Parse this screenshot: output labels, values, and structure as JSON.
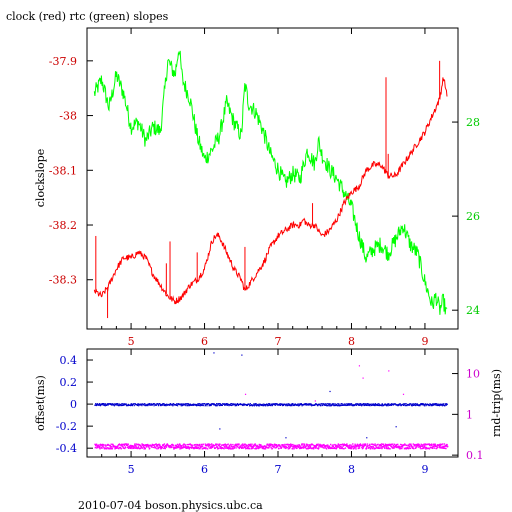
{
  "title": "clock (red) rtc (green) slopes",
  "footer": "2010-07-04 boson.physics.ubc.ca",
  "colors": {
    "clock": "#ff0000",
    "rtc": "#00ff00",
    "offset": "#0000cc",
    "rndtrip": "#ff00ff",
    "axis_left_top": "#cc0000",
    "axis_right_top": "#00cc00",
    "axis_left_bottom": "#0000cc",
    "axis_right_bottom": "#cc00cc"
  },
  "chart_data": [
    {
      "type": "line",
      "ylabel": "clockslope",
      "xlim": [
        4.4,
        9.45
      ],
      "x_ticks": [
        5,
        6,
        7,
        8,
        9
      ],
      "x_tick_labels": [
        "5",
        "6",
        "7",
        "8",
        "9"
      ],
      "ylim": [
        -38.39,
        -37.84
      ],
      "y_ticks": [
        -37.9,
        -38,
        -38.1,
        -38.2,
        -38.3
      ],
      "y_tick_labels": [
        "-37.9",
        "-38",
        "-38.1",
        "-38.2",
        "-38.3"
      ],
      "y2lim": [
        23.6,
        30.0
      ],
      "y2_ticks": [
        24,
        26,
        28
      ],
      "y2_tick_labels": [
        "24",
        "26",
        "28"
      ],
      "series": [
        {
          "axis": "left",
          "points": [
            [
              4.5,
              -38.32
            ],
            [
              4.6,
              -38.33
            ],
            [
              4.7,
              -38.31
            ],
            [
              4.8,
              -38.28
            ],
            [
              4.9,
              -38.26
            ],
            [
              5.0,
              -38.26
            ],
            [
              5.1,
              -38.25
            ],
            [
              5.2,
              -38.26
            ],
            [
              5.3,
              -38.29
            ],
            [
              5.4,
              -38.31
            ],
            [
              5.5,
              -38.33
            ],
            [
              5.6,
              -38.34
            ],
            [
              5.7,
              -38.33
            ],
            [
              5.8,
              -38.31
            ],
            [
              5.9,
              -38.3
            ],
            [
              6.0,
              -38.28
            ],
            [
              6.1,
              -38.23
            ],
            [
              6.15,
              -38.22
            ],
            [
              6.2,
              -38.22
            ],
            [
              6.3,
              -38.25
            ],
            [
              6.4,
              -38.28
            ],
            [
              6.5,
              -38.3
            ],
            [
              6.55,
              -38.32
            ],
            [
              6.6,
              -38.31
            ],
            [
              6.7,
              -38.29
            ],
            [
              6.8,
              -38.27
            ],
            [
              6.9,
              -38.24
            ],
            [
              7.0,
              -38.22
            ],
            [
              7.1,
              -38.21
            ],
            [
              7.2,
              -38.2
            ],
            [
              7.3,
              -38.2
            ],
            [
              7.35,
              -38.19
            ],
            [
              7.4,
              -38.2
            ],
            [
              7.5,
              -38.2
            ],
            [
              7.6,
              -38.22
            ],
            [
              7.7,
              -38.21
            ],
            [
              7.8,
              -38.19
            ],
            [
              7.9,
              -38.16
            ],
            [
              8.0,
              -38.14
            ],
            [
              8.1,
              -38.13
            ],
            [
              8.2,
              -38.1
            ],
            [
              8.3,
              -38.09
            ],
            [
              8.4,
              -38.09
            ],
            [
              8.5,
              -38.11
            ],
            [
              8.6,
              -38.11
            ],
            [
              8.7,
              -38.09
            ],
            [
              8.8,
              -38.07
            ],
            [
              8.9,
              -38.05
            ],
            [
              9.0,
              -38.03
            ],
            [
              9.1,
              -38.0
            ],
            [
              9.2,
              -37.97
            ],
            [
              9.25,
              -37.93
            ],
            [
              9.3,
              -37.96
            ]
          ],
          "spikes": [
            [
              4.52,
              -38.22
            ],
            [
              4.68,
              -38.37
            ],
            [
              5.48,
              -38.27
            ],
            [
              5.53,
              -38.23
            ],
            [
              5.9,
              -38.25
            ],
            [
              6.55,
              -38.24
            ],
            [
              7.47,
              -38.16
            ],
            [
              8.47,
              -37.93
            ],
            [
              8.5,
              -38.07
            ],
            [
              9.2,
              -37.9
            ]
          ]
        },
        {
          "axis": "right",
          "points": [
            [
              4.5,
              28.6
            ],
            [
              4.6,
              28.9
            ],
            [
              4.7,
              28.3
            ],
            [
              4.8,
              29.0
            ],
            [
              4.9,
              28.6
            ],
            [
              5.0,
              27.9
            ],
            [
              5.1,
              28.0
            ],
            [
              5.2,
              27.6
            ],
            [
              5.3,
              27.9
            ],
            [
              5.4,
              27.8
            ],
            [
              5.5,
              29.3
            ],
            [
              5.6,
              29.0
            ],
            [
              5.65,
              29.6
            ],
            [
              5.7,
              28.9
            ],
            [
              5.8,
              28.5
            ],
            [
              5.9,
              27.7
            ],
            [
              6.0,
              27.2
            ],
            [
              6.1,
              27.4
            ],
            [
              6.2,
              27.7
            ],
            [
              6.3,
              28.4
            ],
            [
              6.4,
              28.0
            ],
            [
              6.5,
              27.7
            ],
            [
              6.55,
              28.8
            ],
            [
              6.6,
              28.4
            ],
            [
              6.7,
              28.2
            ],
            [
              6.8,
              27.8
            ],
            [
              6.9,
              27.3
            ],
            [
              7.0,
              27.0
            ],
            [
              7.1,
              26.7
            ],
            [
              7.2,
              26.9
            ],
            [
              7.3,
              26.8
            ],
            [
              7.4,
              27.4
            ],
            [
              7.5,
              27.1
            ],
            [
              7.55,
              27.6
            ],
            [
              7.6,
              27.3
            ],
            [
              7.7,
              27.0
            ],
            [
              7.8,
              26.8
            ],
            [
              7.9,
              26.5
            ],
            [
              8.0,
              26.2
            ],
            [
              8.1,
              25.6
            ],
            [
              8.2,
              25.1
            ],
            [
              8.3,
              25.3
            ],
            [
              8.4,
              25.4
            ],
            [
              8.5,
              25.2
            ],
            [
              8.6,
              25.5
            ],
            [
              8.7,
              25.8
            ],
            [
              8.8,
              25.4
            ],
            [
              8.9,
              25.2
            ],
            [
              9.0,
              24.6
            ],
            [
              9.1,
              24.1
            ],
            [
              9.15,
              24.3
            ],
            [
              9.2,
              24.0
            ],
            [
              9.25,
              24.2
            ],
            [
              9.3,
              23.9
            ]
          ]
        }
      ]
    },
    {
      "type": "scatter",
      "ylabel": "offset(ms)",
      "y2label": "rnd-trip(ms)",
      "xlim": [
        4.4,
        9.45
      ],
      "x_ticks": [
        5,
        6,
        7,
        8,
        9
      ],
      "x_tick_labels": [
        "5",
        "6",
        "7",
        "8",
        "9"
      ],
      "ylim": [
        -0.48,
        0.5
      ],
      "y_ticks": [
        0.4,
        0.2,
        0,
        -0.2,
        -0.4
      ],
      "y_tick_labels": [
        "0.4",
        "0.2",
        "0",
        "-0.2",
        "-0.4"
      ],
      "y2_scale": "log",
      "y2lim": [
        0.09,
        40
      ],
      "y2_ticks": [
        10,
        1,
        0.1
      ],
      "y2_tick_labels": [
        "10",
        "1",
        "0.1"
      ],
      "series": [
        {
          "axis": "left",
          "x_range": [
            4.5,
            9.3
          ],
          "y": 0.0
        },
        {
          "axis": "left",
          "outliers": [
            [
              6.12,
              0.47
            ],
            [
              6.5,
              0.45
            ],
            [
              6.2,
              -0.22
            ],
            [
              7.1,
              -0.3
            ],
            [
              7.7,
              0.12
            ],
            [
              8.2,
              -0.3
            ],
            [
              8.6,
              -0.2
            ]
          ]
        },
        {
          "axis": "right",
          "x_range": [
            4.5,
            9.3
          ],
          "y": 0.17
        },
        {
          "axis": "right",
          "outliers": [
            [
              8.15,
              8.0
            ],
            [
              8.5,
              12.0
            ],
            [
              8.7,
              3.2
            ],
            [
              6.55,
              3.2
            ],
            [
              7.5,
              2.2
            ],
            [
              8.1,
              16.0
            ]
          ]
        }
      ]
    }
  ]
}
